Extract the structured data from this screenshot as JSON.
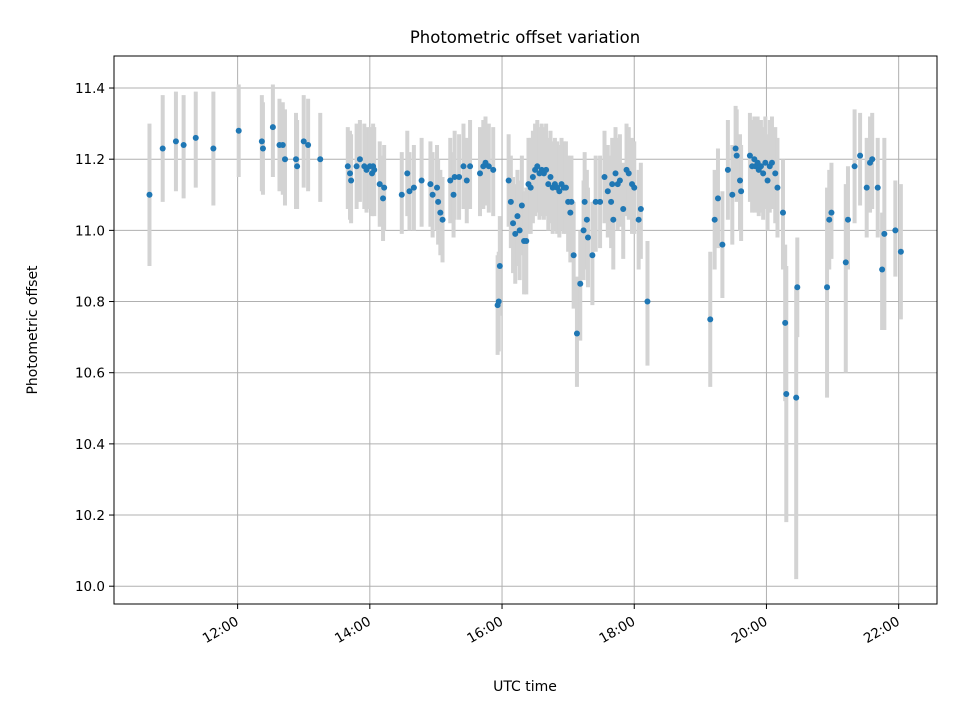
{
  "chart_data": {
    "type": "scatter",
    "title": "Photometric offset variation",
    "xlabel": "UTC time",
    "ylabel": "Photometric offset",
    "xlim_hours": [
      10.13,
      22.58
    ],
    "ylim": [
      9.95,
      11.49
    ],
    "x_ticks": [
      {
        "hour": 12,
        "label": "12:00"
      },
      {
        "hour": 14,
        "label": "14:00"
      },
      {
        "hour": 16,
        "label": "16:00"
      },
      {
        "hour": 18,
        "label": "18:00"
      },
      {
        "hour": 20,
        "label": "20:00"
      },
      {
        "hour": 22,
        "label": "22:00"
      }
    ],
    "y_ticks": [
      {
        "value": 10.0,
        "label": "10.0"
      },
      {
        "value": 10.2,
        "label": "10.2"
      },
      {
        "value": 10.4,
        "label": "10.4"
      },
      {
        "value": 10.6,
        "label": "10.6"
      },
      {
        "value": 10.8,
        "label": "10.8"
      },
      {
        "value": 11.0,
        "label": "11.0"
      },
      {
        "value": 11.2,
        "label": "11.2"
      },
      {
        "value": 11.4,
        "label": "11.4"
      }
    ],
    "grid": true,
    "colors": {
      "point": "#1f77b4",
      "errorbar": "#d3d3d3",
      "grid": "#b0b0b0"
    },
    "points": [
      [
        "10:40",
        11.1,
        10.9,
        11.3
      ],
      [
        "10:52",
        11.23,
        11.08,
        11.38
      ],
      [
        "11:04",
        11.25,
        11.11,
        11.39
      ],
      [
        "11:11",
        11.24,
        11.09,
        11.38
      ],
      [
        "11:22",
        11.26,
        11.12,
        11.39
      ],
      [
        "11:38",
        11.23,
        11.07,
        11.39
      ],
      [
        "12:01",
        11.28,
        11.15,
        11.41
      ],
      [
        "12:22",
        11.25,
        11.11,
        11.38
      ],
      [
        "12:23",
        11.23,
        11.1,
        11.36
      ],
      [
        "12:32",
        11.29,
        11.15,
        11.41
      ],
      [
        "12:38",
        11.24,
        11.11,
        11.37
      ],
      [
        "12:41",
        11.24,
        11.1,
        11.36
      ],
      [
        "12:43",
        11.2,
        11.07,
        11.34
      ],
      [
        "12:53",
        11.2,
        11.06,
        11.33
      ],
      [
        "12:54",
        11.18,
        11.06,
        11.31
      ],
      [
        "13:00",
        11.25,
        11.12,
        11.38
      ],
      [
        "13:04",
        11.24,
        11.11,
        11.37
      ],
      [
        "13:15",
        11.2,
        11.08,
        11.33
      ],
      [
        "13:40",
        11.18,
        11.06,
        11.29
      ],
      [
        "13:42",
        11.16,
        11.03,
        11.28
      ],
      [
        "13:43",
        11.14,
        11.02,
        11.27
      ],
      [
        "13:48",
        11.18,
        11.06,
        11.3
      ],
      [
        "13:51",
        11.2,
        11.08,
        11.31
      ],
      [
        "13:55",
        11.18,
        11.06,
        11.3
      ],
      [
        "13:57",
        11.17,
        11.05,
        11.29
      ],
      [
        "14:00",
        11.18,
        11.06,
        11.29
      ],
      [
        "14:02",
        11.16,
        11.04,
        11.28
      ],
      [
        "14:03",
        11.18,
        11.06,
        11.3
      ],
      [
        "14:04",
        11.17,
        11.04,
        11.29
      ],
      [
        "14:09",
        11.13,
        11.01,
        11.25
      ],
      [
        "14:12",
        11.09,
        10.97,
        11.21
      ],
      [
        "14:13",
        11.12,
        11.0,
        11.24
      ],
      [
        "14:29",
        11.1,
        10.99,
        11.22
      ],
      [
        "14:34",
        11.16,
        11.04,
        11.28
      ],
      [
        "14:36",
        11.11,
        11.0,
        11.22
      ],
      [
        "14:40",
        11.12,
        11.0,
        11.24
      ],
      [
        "14:47",
        11.14,
        11.01,
        11.26
      ],
      [
        "14:55",
        11.13,
        11.01,
        11.25
      ],
      [
        "14:57",
        11.1,
        10.98,
        11.22
      ],
      [
        "15:01",
        11.12,
        11.0,
        11.24
      ],
      [
        "15:02",
        11.08,
        10.96,
        11.2
      ],
      [
        "15:04",
        11.05,
        10.93,
        11.17
      ],
      [
        "15:06",
        11.03,
        10.91,
        11.15
      ],
      [
        "15:13",
        11.14,
        11.02,
        11.26
      ],
      [
        "15:16",
        11.1,
        10.98,
        11.22
      ],
      [
        "15:17",
        11.15,
        11.03,
        11.28
      ],
      [
        "15:21",
        11.15,
        11.03,
        11.27
      ],
      [
        "15:25",
        11.18,
        11.06,
        11.3
      ],
      [
        "15:28",
        11.14,
        11.02,
        11.26
      ],
      [
        "15:31",
        11.18,
        11.06,
        11.31
      ],
      [
        "15:40",
        11.16,
        11.04,
        11.29
      ],
      [
        "15:43",
        11.18,
        11.06,
        11.31
      ],
      [
        "15:45",
        11.19,
        11.07,
        11.32
      ],
      [
        "15:48",
        11.18,
        11.05,
        11.3
      ],
      [
        "15:52",
        11.17,
        11.04,
        11.29
      ],
      [
        "15:56",
        10.79,
        10.65,
        10.93
      ],
      [
        "15:57",
        10.8,
        10.66,
        10.94
      ],
      [
        "15:58",
        10.9,
        10.76,
        11.04
      ],
      [
        "16:06",
        11.14,
        11.01,
        11.27
      ],
      [
        "16:08",
        11.08,
        10.95,
        11.21
      ],
      [
        "16:10",
        11.02,
        10.88,
        11.15
      ],
      [
        "16:12",
        10.99,
        10.85,
        11.13
      ],
      [
        "16:14",
        11.04,
        10.9,
        11.17
      ],
      [
        "16:16",
        11.0,
        10.86,
        11.14
      ],
      [
        "16:18",
        11.07,
        10.93,
        11.21
      ],
      [
        "16:20",
        10.97,
        10.82,
        11.11
      ],
      [
        "16:22",
        10.97,
        10.82,
        11.12
      ],
      [
        "16:24",
        11.13,
        10.99,
        11.26
      ],
      [
        "16:26",
        11.12,
        10.99,
        11.26
      ],
      [
        "16:28",
        11.15,
        11.02,
        11.28
      ],
      [
        "16:30",
        11.17,
        11.04,
        11.3
      ],
      [
        "16:32",
        11.18,
        11.05,
        11.31
      ],
      [
        "16:34",
        11.16,
        11.03,
        11.29
      ],
      [
        "16:36",
        11.17,
        11.04,
        11.3
      ],
      [
        "16:38",
        11.16,
        11.03,
        11.29
      ],
      [
        "16:40",
        11.17,
        11.04,
        11.3
      ],
      [
        "16:42",
        11.13,
        11.0,
        11.26
      ],
      [
        "16:44",
        11.15,
        11.02,
        11.28
      ],
      [
        "16:46",
        11.12,
        10.99,
        11.25
      ],
      [
        "16:48",
        11.13,
        11.0,
        11.26
      ],
      [
        "16:50",
        11.12,
        10.99,
        11.25
      ],
      [
        "16:52",
        11.11,
        10.98,
        11.24
      ],
      [
        "16:54",
        11.13,
        11.0,
        11.26
      ],
      [
        "16:56",
        11.12,
        10.99,
        11.25
      ],
      [
        "16:58",
        11.12,
        10.99,
        11.25
      ],
      [
        "17:00",
        11.08,
        10.94,
        11.21
      ],
      [
        "17:02",
        11.05,
        10.91,
        11.18
      ],
      [
        "17:03",
        11.08,
        10.94,
        11.21
      ],
      [
        "17:05",
        10.93,
        10.78,
        11.08
      ],
      [
        "17:08",
        10.71,
        10.56,
        10.87
      ],
      [
        "17:11",
        10.85,
        10.69,
        11.0
      ],
      [
        "17:14",
        11.0,
        10.86,
        11.14
      ],
      [
        "17:15",
        11.08,
        10.94,
        11.22
      ],
      [
        "17:17",
        11.03,
        10.89,
        11.17
      ],
      [
        "17:18",
        10.98,
        10.84,
        11.12
      ],
      [
        "17:22",
        10.93,
        10.79,
        11.08
      ],
      [
        "17:25",
        11.08,
        10.94,
        11.21
      ],
      [
        "17:29",
        11.08,
        10.95,
        11.21
      ],
      [
        "17:33",
        11.15,
        11.02,
        11.28
      ],
      [
        "17:36",
        11.11,
        10.98,
        11.24
      ],
      [
        "17:39",
        11.08,
        10.95,
        11.21
      ],
      [
        "17:40",
        11.13,
        11.0,
        11.26
      ],
      [
        "17:41",
        11.03,
        10.89,
        11.16
      ],
      [
        "17:43",
        11.16,
        11.03,
        11.29
      ],
      [
        "17:45",
        11.13,
        11.0,
        11.26
      ],
      [
        "17:47",
        11.14,
        11.01,
        11.27
      ],
      [
        "17:50",
        11.06,
        10.92,
        11.19
      ],
      [
        "17:53",
        11.17,
        11.04,
        11.3
      ],
      [
        "17:55",
        11.16,
        11.03,
        11.29
      ],
      [
        "17:58",
        11.13,
        10.99,
        11.26
      ],
      [
        "18:00",
        11.12,
        10.99,
        11.25
      ],
      [
        "18:04",
        11.03,
        10.89,
        11.17
      ],
      [
        "18:06",
        11.06,
        10.92,
        11.19
      ],
      [
        "18:12",
        10.8,
        10.62,
        10.97
      ],
      [
        "19:09",
        10.75,
        10.56,
        10.94
      ],
      [
        "19:13",
        11.03,
        10.89,
        11.17
      ],
      [
        "19:16",
        11.09,
        10.95,
        11.23
      ],
      [
        "19:20",
        10.96,
        10.81,
        11.11
      ],
      [
        "19:25",
        11.17,
        11.03,
        11.31
      ],
      [
        "19:29",
        11.1,
        10.96,
        11.24
      ],
      [
        "19:32",
        11.23,
        11.1,
        11.35
      ],
      [
        "19:33",
        11.21,
        11.08,
        11.34
      ],
      [
        "19:36",
        11.14,
        11.0,
        11.27
      ],
      [
        "19:37",
        11.11,
        10.97,
        11.24
      ],
      [
        "19:45",
        11.21,
        11.08,
        11.33
      ],
      [
        "19:47",
        11.18,
        11.05,
        11.31
      ],
      [
        "19:49",
        11.2,
        11.07,
        11.32
      ],
      [
        "19:50",
        11.18,
        11.05,
        11.31
      ],
      [
        "19:52",
        11.19,
        11.06,
        11.32
      ],
      [
        "19:53",
        11.17,
        11.04,
        11.3
      ],
      [
        "19:55",
        11.18,
        11.05,
        11.31
      ],
      [
        "19:57",
        11.16,
        11.03,
        11.29
      ],
      [
        "19:59",
        11.19,
        11.06,
        11.32
      ],
      [
        "20:01",
        11.14,
        11.0,
        11.27
      ],
      [
        "20:03",
        11.18,
        11.05,
        11.31
      ],
      [
        "20:05",
        11.19,
        11.06,
        11.32
      ],
      [
        "20:08",
        11.16,
        11.02,
        11.29
      ],
      [
        "20:10",
        11.12,
        10.98,
        11.26
      ],
      [
        "20:15",
        11.05,
        10.89,
        11.2
      ],
      [
        "20:17",
        10.74,
        10.52,
        10.96
      ],
      [
        "20:18",
        10.54,
        10.18,
        10.9
      ],
      [
        "20:27",
        10.53,
        10.02,
        10.84
      ],
      [
        "20:28",
        10.84,
        10.7,
        10.98
      ],
      [
        "20:55",
        10.84,
        10.53,
        11.12
      ],
      [
        "20:57",
        11.03,
        10.89,
        11.17
      ],
      [
        "20:59",
        11.05,
        10.92,
        11.19
      ],
      [
        "21:12",
        10.91,
        10.6,
        11.13
      ],
      [
        "21:14",
        11.03,
        10.89,
        11.18
      ],
      [
        "21:20",
        11.18,
        11.02,
        11.34
      ],
      [
        "21:25",
        11.21,
        11.07,
        11.33
      ],
      [
        "21:31",
        11.12,
        10.98,
        11.26
      ],
      [
        "21:34",
        11.19,
        11.05,
        11.32
      ],
      [
        "21:36",
        11.2,
        11.06,
        11.33
      ],
      [
        "21:41",
        11.12,
        10.98,
        11.26
      ],
      [
        "21:45",
        10.89,
        10.72,
        11.05
      ],
      [
        "21:47",
        10.99,
        10.72,
        11.26
      ],
      [
        "21:57",
        11.0,
        10.87,
        11.14
      ],
      [
        "22:02",
        10.94,
        10.75,
        11.13
      ]
    ]
  }
}
